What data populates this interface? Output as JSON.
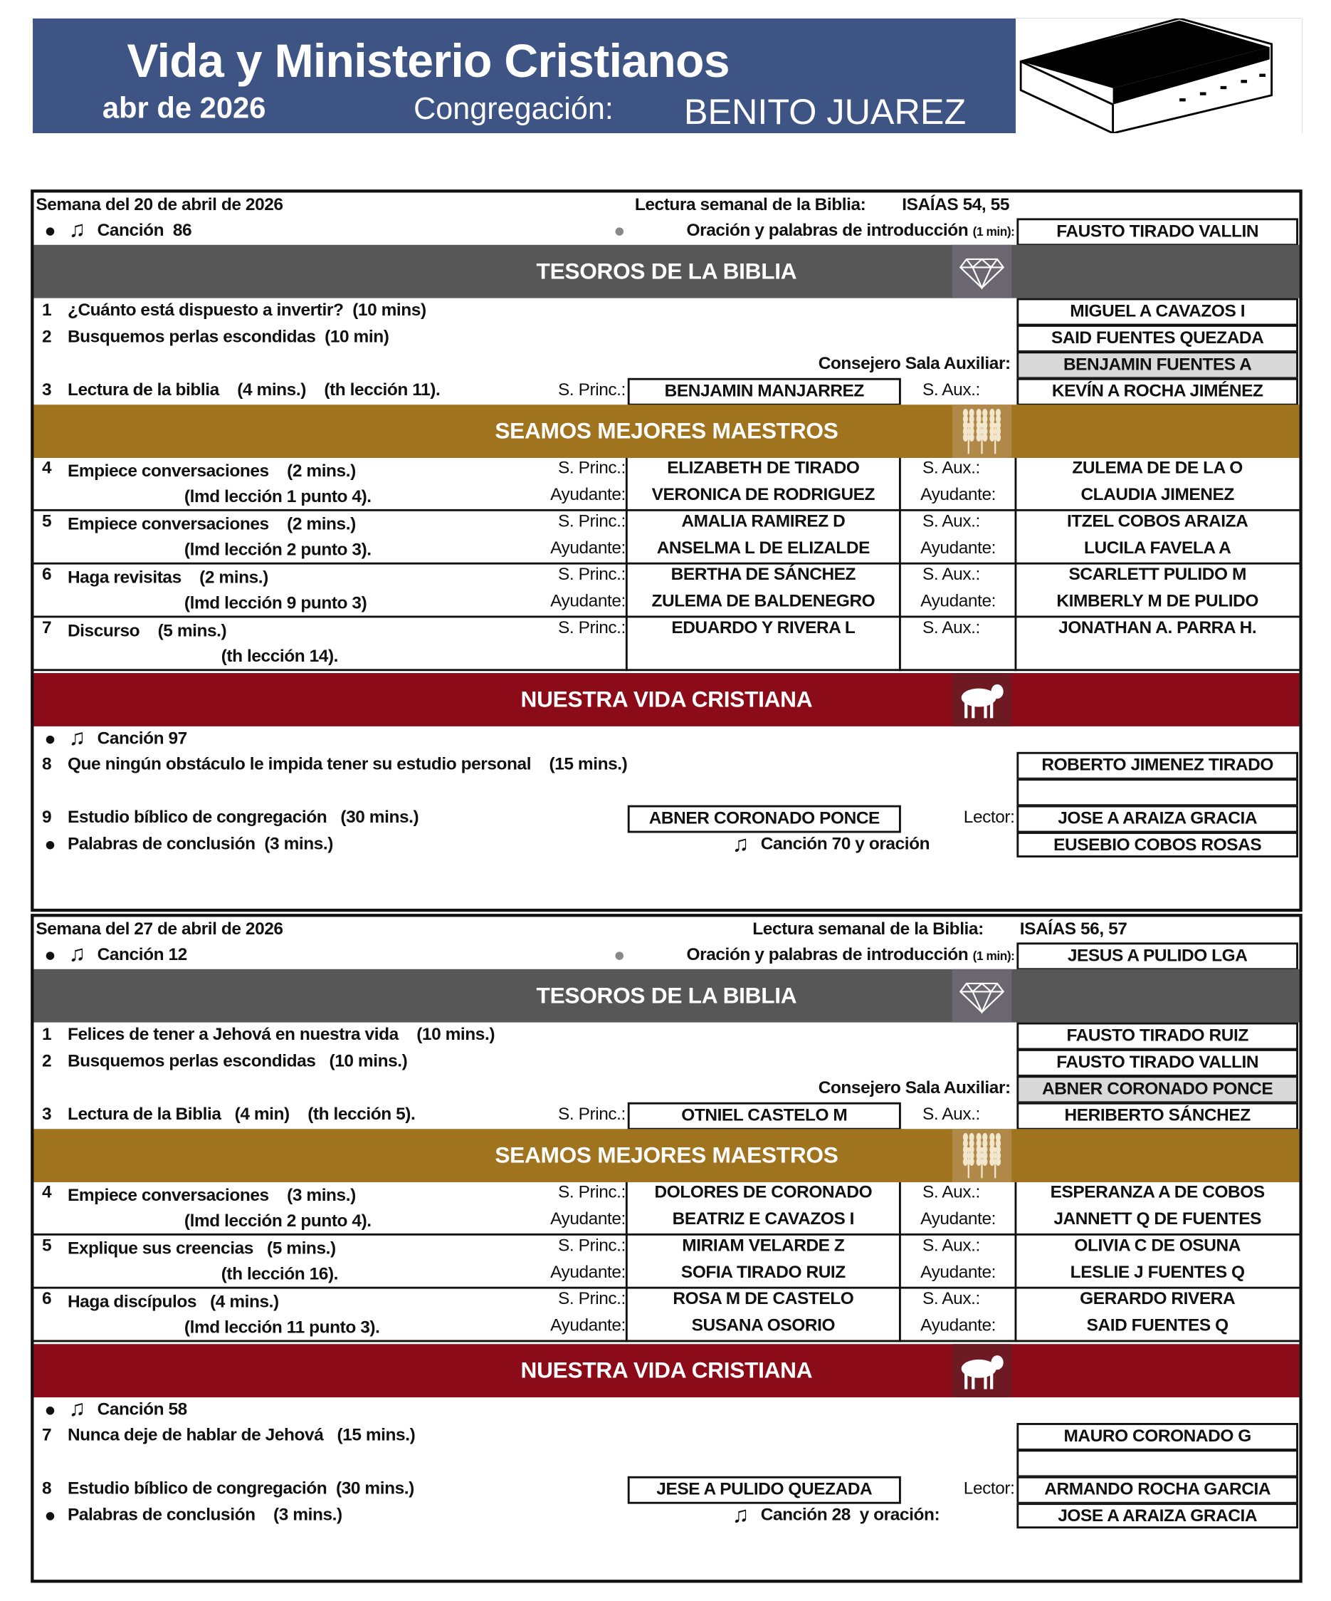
{
  "header": {
    "title": "Vida y Ministerio Cristianos",
    "month": "abr de 2026",
    "congregation_label": "Congregación:",
    "congregation": "BENITO JUAREZ",
    "icon": "bible-book-icon",
    "color": "#3e5484"
  },
  "colors": {
    "treasures": "#575757",
    "ministry": "#a0731e",
    "living": "#8b0c18",
    "counselor_bg": "#d9d9d9"
  },
  "weeks": [
    {
      "week_label": "Semana del 20 de abril de 2026",
      "reading_label": "Lectura semanal de la Biblia:",
      "reading": "ISAÍAS 54, 55",
      "opening_song": "Canción  86",
      "prayer_label": "Oración y palabras de introducción",
      "prayer_minutes": "(1 min):",
      "prayer_name": "FAUSTO TIRADO VALLIN",
      "treasures": {
        "title": "TESOROS DE LA BIBLIA",
        "parts": [
          {
            "num": "1",
            "text": "¿Cuánto está dispuesto a invertir?  (10 mins)",
            "name": "MIGUEL A CAVAZOS I"
          },
          {
            "num": "2",
            "text": "Busquemos perlas escondidas  (10 min)",
            "name": "SAID FUENTES QUEZADA"
          }
        ],
        "counselor_label": "Consejero Sala Auxiliar:",
        "counselor": "BENJAMIN FUENTES A",
        "reading_part": {
          "num": "3",
          "text": "Lectura de la biblia    (4 mins.)    (th lección 11).",
          "princ_label": "S. Princ.:",
          "princ": "BENJAMIN MANJARREZ",
          "aux_label": "S. Aux.:",
          "aux": "KEVÍN A ROCHA JIMÉNEZ"
        }
      },
      "ministry": {
        "title": "SEAMOS MEJORES MAESTROS",
        "parts": [
          {
            "num": "4",
            "line1": "Empiece conversaciones    (2 mins.)",
            "line2": "(lmd lección 1 punto 4).",
            "princ_label": "S. Princ.:",
            "princ": "ELIZABETH DE TIRADO",
            "helper_label": "Ayudante:",
            "helper": "VERONICA DE RODRIGUEZ",
            "aux_label": "S. Aux.:",
            "aux": "ZULEMA DE DE LA O",
            "aux_helper_label": "Ayudante:",
            "aux_helper": "CLAUDIA JIMENEZ"
          },
          {
            "num": "5",
            "line1": "Empiece conversaciones    (2 mins.)",
            "line2": "(lmd lección 2 punto 3).",
            "princ_label": "S. Princ.:",
            "princ": "AMALIA RAMIREZ D",
            "helper_label": "Ayudante:",
            "helper": "ANSELMA L DE ELIZALDE",
            "aux_label": "S. Aux.:",
            "aux": "ITZEL COBOS ARAIZA",
            "aux_helper_label": "Ayudante:",
            "aux_helper": "LUCILA FAVELA A"
          },
          {
            "num": "6",
            "line1": "Haga revisitas    (2 mins.)",
            "line2": "(lmd lección 9 punto 3)",
            "princ_label": "S. Princ.:",
            "princ": "BERTHA DE SÁNCHEZ",
            "helper_label": "Ayudante:",
            "helper": "ZULEMA DE BALDENEGRO",
            "aux_label": "S. Aux.:",
            "aux": "SCARLETT PULIDO M",
            "aux_helper_label": "Ayudante:",
            "aux_helper": "KIMBERLY M DE PULIDO"
          },
          {
            "num": "7",
            "line1": "Discurso    (5 mins.)",
            "line2": "(th lección 14).",
            "princ_label": "S. Princ.:",
            "princ": "EDUARDO Y RIVERA L",
            "aux_label": "S. Aux.:",
            "aux": "JONATHAN A. PARRA H."
          }
        ]
      },
      "living": {
        "title": "NUESTRA VIDA CRISTIANA",
        "song": "Canción 97",
        "parts": [
          {
            "num": "8",
            "text": "Que ningún obstáculo le impida tener su estudio personal    (15 mins.)",
            "name": "ROBERTO JIMENEZ TIRADO"
          }
        ],
        "cbs": {
          "num": "9",
          "text": "Estudio bíblico de congregación   (30 mins.)",
          "conductor": "ABNER CORONADO PONCE",
          "reader_label": "Lector:",
          "reader": "JOSE A ARAIZA GRACIA"
        },
        "closing": {
          "text": "Palabras de conclusión  (3 mins.)",
          "song": "Canción 70 y oración",
          "prayer_name": "EUSEBIO COBOS ROSAS"
        }
      }
    },
    {
      "week_label": "Semana del 27 de abril de 2026",
      "reading_label": "Lectura semanal de la Biblia:",
      "reading": "ISAÍAS 56, 57",
      "opening_song": "Canción 12",
      "prayer_label": "Oración y palabras de introducción",
      "prayer_minutes": "(1 min):",
      "prayer_name": "JESUS A PULIDO LGA",
      "treasures": {
        "title": "TESOROS DE LA BIBLIA",
        "parts": [
          {
            "num": "1",
            "text": "Felices de tener a Jehová en nuestra vida    (10 mins.)",
            "name": "FAUSTO TIRADO RUIZ"
          },
          {
            "num": "2",
            "text": "Busquemos perlas escondidas   (10 mins.)",
            "name": "FAUSTO TIRADO VALLIN"
          }
        ],
        "counselor_label": "Consejero Sala Auxiliar:",
        "counselor": "ABNER CORONADO PONCE",
        "reading_part": {
          "num": "3",
          "text": "Lectura de la Biblia   (4 min)    (th lección 5).",
          "princ_label": "S. Princ.:",
          "princ": "OTNIEL CASTELO M",
          "aux_label": "S. Aux.:",
          "aux": "HERIBERTO SÁNCHEZ"
        }
      },
      "ministry": {
        "title": "SEAMOS MEJORES MAESTROS",
        "parts": [
          {
            "num": "4",
            "line1": "Empiece conversaciones    (3 mins.)",
            "line2": "(lmd lección 2 punto 4).",
            "princ_label": "S. Princ.:",
            "princ": "DOLORES DE CORONADO",
            "helper_label": "Ayudante:",
            "helper": "BEATRIZ E CAVAZOS I",
            "aux_label": "S. Aux.:",
            "aux": "ESPERANZA A DE COBOS",
            "aux_helper_label": "Ayudante:",
            "aux_helper": "JANNETT Q DE FUENTES"
          },
          {
            "num": "5",
            "line1": "Explique sus creencias   (5 mins.)",
            "line2": "(th lección 16).",
            "princ_label": "S. Princ.:",
            "princ": "MIRIAM VELARDE Z",
            "helper_label": "Ayudante:",
            "helper": "SOFIA TIRADO RUIZ",
            "aux_label": "S. Aux.:",
            "aux": "OLIVIA C DE OSUNA",
            "aux_helper_label": "Ayudante:",
            "aux_helper": "LESLIE J FUENTES Q"
          },
          {
            "num": "6",
            "line1": "Haga discípulos   (4 mins.)",
            "line2": "(lmd lección 11 punto 3).",
            "princ_label": "S. Princ.:",
            "princ": "ROSA M DE CASTELO",
            "helper_label": "Ayudante:",
            "helper": "SUSANA OSORIO",
            "aux_label": "S. Aux.:",
            "aux": "GERARDO RIVERA",
            "aux_helper_label": "Ayudante:",
            "aux_helper": "SAID FUENTES Q"
          }
        ]
      },
      "living": {
        "title": "NUESTRA VIDA CRISTIANA",
        "song": "Canción 58",
        "parts": [
          {
            "num": "7",
            "text": "Nunca deje de hablar de Jehová   (15 mins.)",
            "name": "MAURO CORONADO G"
          }
        ],
        "cbs": {
          "num": "8",
          "text": "Estudio bíblico de congregación  (30 mins.)",
          "conductor": "JESE A PULIDO QUEZADA",
          "reader_label": "Lector:",
          "reader": "ARMANDO ROCHA GARCIA"
        },
        "closing": {
          "text": "Palabras de conclusión    (3 mins.)",
          "song": "Canción 28  y oración:",
          "prayer_name": "JOSE A ARAIZA GRACIA"
        }
      }
    }
  ]
}
